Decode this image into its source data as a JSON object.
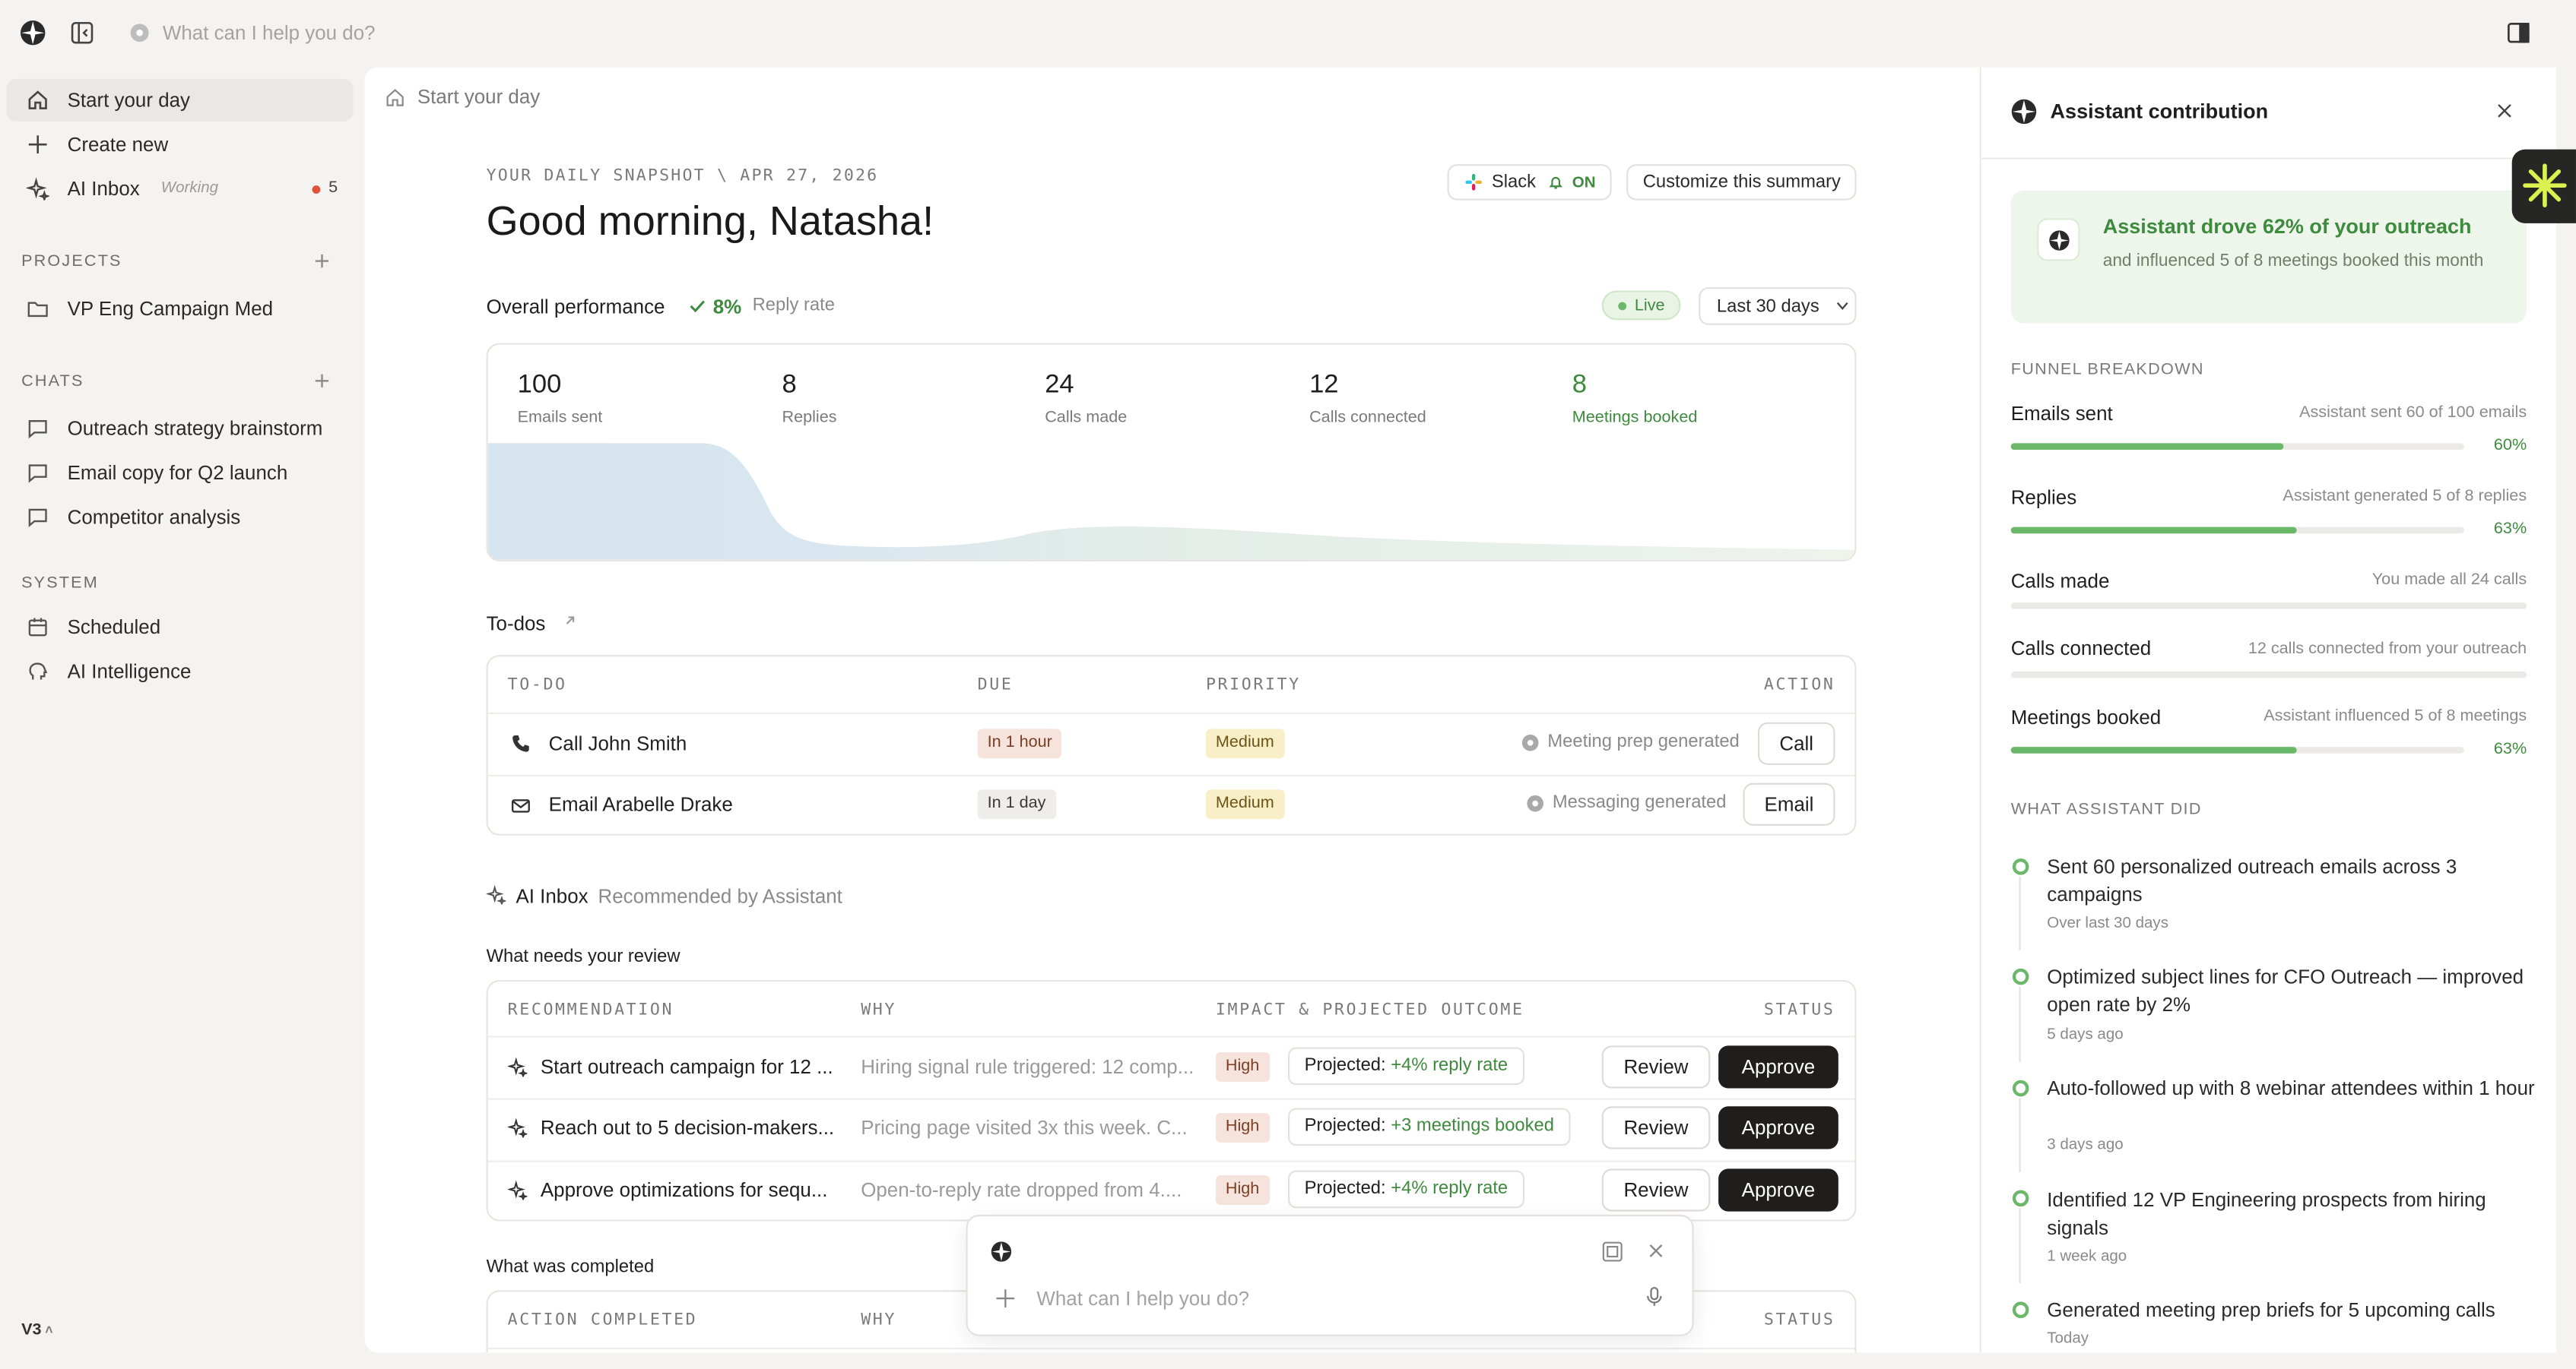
{
  "topbar": {
    "search_placeholder": "What can I help you do?"
  },
  "sidebar": {
    "items": [
      {
        "label": "Start your day"
      },
      {
        "label": "Create new"
      },
      {
        "label": "AI Inbox",
        "status": "Working",
        "count": "5"
      }
    ],
    "projects_header": "PROJECTS",
    "projects": [
      {
        "label": "VP Eng Campaign Med"
      }
    ],
    "chats_header": "CHATS",
    "chats": [
      {
        "label": "Outreach strategy brainstorm"
      },
      {
        "label": "Email copy for Q2 launch"
      },
      {
        "label": "Competitor analysis"
      }
    ],
    "system_header": "SYSTEM",
    "system": [
      {
        "label": "Scheduled"
      },
      {
        "label": "AI Intelligence"
      }
    ],
    "version": "V3"
  },
  "main": {
    "breadcrumb": "Start your day",
    "snapshot_label": "YOUR DAILY SNAPSHOT \\ APR 27, 2026",
    "greeting": "Good morning, Natasha!",
    "slack": {
      "label": "Slack",
      "status": "ON"
    },
    "customize_label": "Customize this summary",
    "performance": {
      "title": "Overall performance",
      "reply_rate_value": "8%",
      "reply_rate_label": "Reply rate",
      "live_label": "Live",
      "range_label": "Last 30 days"
    },
    "stats": [
      {
        "value": "100",
        "label": "Emails sent"
      },
      {
        "value": "8",
        "label": "Replies"
      },
      {
        "value": "24",
        "label": "Calls made"
      },
      {
        "value": "12",
        "label": "Calls connected"
      },
      {
        "value": "8",
        "label": "Meetings booked"
      }
    ],
    "todos": {
      "title": "To-dos",
      "headers": [
        "TO-DO",
        "DUE",
        "PRIORITY",
        "ACTION"
      ],
      "rows": [
        {
          "task": "Call John Smith",
          "icon": "phone-icon",
          "due": "In 1 hour",
          "priority": "Medium",
          "note": "Meeting prep generated",
          "action": "Call"
        },
        {
          "task": "Email Arabelle Drake",
          "icon": "mail-icon",
          "due": "In 1 day",
          "priority": "Medium",
          "note": "Messaging generated",
          "action": "Email"
        }
      ]
    },
    "inbox": {
      "title": "AI Inbox",
      "subtitle": "Recommended by Assistant",
      "review_title": "What needs your review",
      "headers": [
        "RECOMMENDATION",
        "WHY",
        "IMPACT & PROJECTED OUTCOME",
        "STATUS"
      ],
      "rows": [
        {
          "rec": "Start outreach campaign for 12 ...",
          "why": "Hiring signal rule triggered: 12 comp...",
          "impact": "High",
          "projected_label": "Projected:",
          "projected_value": "+4% reply rate",
          "review": "Review",
          "approve": "Approve"
        },
        {
          "rec": "Reach out to 5 decision-makers...",
          "why": "Pricing page visited 3x this week. C...",
          "impact": "High",
          "projected_label": "Projected:",
          "projected_value": "+3 meetings booked",
          "review": "Review",
          "approve": "Approve"
        },
        {
          "rec": "Approve optimizations for sequ...",
          "why": "Open-to-reply rate dropped from 4....",
          "impact": "High",
          "projected_label": "Projected:",
          "projected_value": "+4% reply rate",
          "review": "Review",
          "approve": "Approve"
        }
      ],
      "completed_title": "What was completed",
      "completed_headers": [
        "ACTION COMPLETED",
        "WHY",
        "STATUS"
      ]
    },
    "composer": {
      "placeholder": "What can I help you do?"
    }
  },
  "assistant": {
    "title": "Assistant contribution",
    "hero_title": "Assistant drove 62% of your outreach",
    "hero_sub": "and influenced 5 of 8 meetings booked this month",
    "funnel_header": "FUNNEL BREAKDOWN",
    "funnel": [
      {
        "name": "Emails sent",
        "desc": "Assistant sent 60 of 100 emails",
        "pct": "60%",
        "fraction": 0.6
      },
      {
        "name": "Replies",
        "desc": "Assistant generated 5 of 8 replies",
        "pct": "63%",
        "fraction": 0.63
      },
      {
        "name": "Calls made",
        "desc": "You made all 24 calls",
        "pct": "",
        "fraction": 0
      },
      {
        "name": "Calls connected",
        "desc": "12 calls connected from your outreach",
        "pct": "",
        "fraction": 0
      },
      {
        "name": "Meetings booked",
        "desc": "Assistant influenced 5 of 8 meetings",
        "pct": "63%",
        "fraction": 0.63
      }
    ],
    "did_header": "WHAT ASSISTANT DID",
    "did": [
      {
        "title": "Sent 60 personalized outreach emails across 3 campaigns",
        "sub": "Over last 30 days"
      },
      {
        "title": "Optimized subject lines for CFO Outreach — improved open rate by 2%",
        "sub": "5 days ago"
      },
      {
        "title": "Auto-followed up with 8 webinar attendees within 1 hour",
        "sub": "3 days ago"
      },
      {
        "title": "Identified 12 VP Engineering prospects from hiring signals",
        "sub": "1 week ago"
      },
      {
        "title": "Generated meeting prep briefs for 5 upcoming calls",
        "sub": "Today"
      }
    ]
  },
  "colors": {
    "accent_green": "#3e8a3e",
    "bar_green": "#6cb86a",
    "dark_button": "#1f1e1c",
    "high_tag": "#f6e4dc",
    "medium_tag": "#f8efc9"
  }
}
